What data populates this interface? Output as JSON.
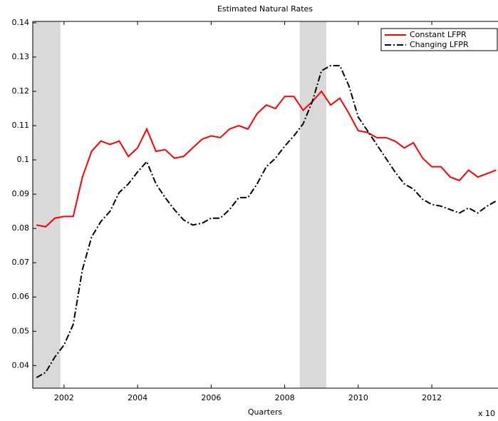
{
  "chart_data": {
    "type": "line",
    "title": "Estimated Natural Rates",
    "x_label": "Quarters",
    "x_multiplier": "x 10",
    "x": [
      2001.25,
      2001.5,
      2001.75,
      2002,
      2002.25,
      2002.5,
      2002.75,
      2003,
      2003.25,
      2003.5,
      2003.75,
      2004,
      2004.25,
      2004.5,
      2004.75,
      2005,
      2005.25,
      2005.5,
      2005.75,
      2006,
      2006.25,
      2006.5,
      2006.75,
      2007,
      2007.25,
      2007.5,
      2007.75,
      2008,
      2008.25,
      2008.5,
      2008.75,
      2009,
      2009.25,
      2009.5,
      2009.75,
      2010,
      2010.25,
      2010.5,
      2010.75,
      2011,
      2011.25,
      2011.5,
      2011.75,
      2012,
      2012.25,
      2012.5,
      2012.75,
      2013,
      2013.25,
      2013.5,
      2013.75
    ],
    "series": [
      {
        "name": "Constant LFPR",
        "color": "#ff0000",
        "style": "solid",
        "values": [
          0.081,
          0.0805,
          0.083,
          0.0835,
          0.0835,
          0.095,
          0.1025,
          0.1055,
          0.1045,
          0.1055,
          0.101,
          0.1035,
          0.109,
          0.1025,
          0.103,
          0.1005,
          0.101,
          0.1035,
          0.106,
          0.107,
          0.1065,
          0.109,
          0.11,
          0.109,
          0.1135,
          0.116,
          0.115,
          0.1185,
          0.1185,
          0.1145,
          0.117,
          0.12,
          0.116,
          0.118,
          0.1135,
          0.1085,
          0.108,
          0.1065,
          0.1065,
          0.1055,
          0.1035,
          0.105,
          0.1005,
          0.098,
          0.098,
          0.095,
          0.094,
          0.097,
          0.095,
          0.096,
          0.097
        ]
      },
      {
        "name": "Changing LFPR",
        "color": "#000000",
        "style": "dashdot",
        "values": [
          0.0365,
          0.038,
          0.0425,
          0.046,
          0.052,
          0.068,
          0.0775,
          0.082,
          0.085,
          0.0905,
          0.093,
          0.0965,
          0.0995,
          0.093,
          0.089,
          0.0855,
          0.0825,
          0.081,
          0.0815,
          0.083,
          0.083,
          0.0855,
          0.089,
          0.089,
          0.093,
          0.098,
          0.1005,
          0.104,
          0.107,
          0.1105,
          0.117,
          0.126,
          0.1275,
          0.1275,
          0.1215,
          0.1125,
          0.1085,
          0.1045,
          0.1005,
          0.0965,
          0.093,
          0.0915,
          0.0885,
          0.087,
          0.0865,
          0.0855,
          0.0845,
          0.086,
          0.0845,
          0.0865,
          0.088
        ]
      }
    ],
    "shaded_periods": [
      [
        2001.15,
        2001.9
      ],
      [
        2008.41,
        2009.13
      ]
    ],
    "shade_color": "#d9d9d9",
    "xlim": [
      2001.15,
      2013.8
    ],
    "xticks": [
      2002,
      2004,
      2006,
      2008,
      2010,
      2012
    ],
    "ylim": [
      0.0334,
      0.1404
    ],
    "yticks": [
      0.04,
      0.05,
      0.06,
      0.07,
      0.08,
      0.09,
      0.1,
      0.11,
      0.12,
      0.13,
      0.14
    ],
    "grid": false,
    "legend": "upper right"
  }
}
